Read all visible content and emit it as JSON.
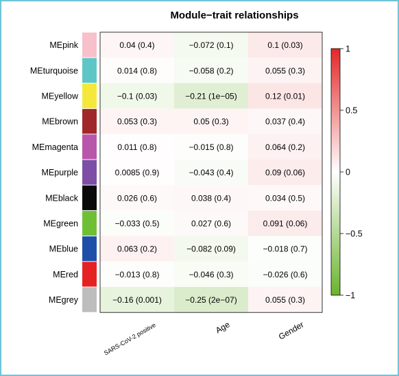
{
  "chart_data": {
    "type": "heatmap",
    "title": "Module−trait relationships",
    "columns": [
      "SARS-CoV-2 positive",
      "Age",
      "Gender"
    ],
    "rows": [
      {
        "module": "MEpink",
        "color": "#f7c0cb",
        "values": [
          0.04,
          -0.072,
          0.1
        ],
        "labels": [
          "0.04 (0.4)",
          "−0.072 (0.1)",
          "0.1 (0.03)"
        ]
      },
      {
        "module": "MEturquoise",
        "color": "#5ec6c6",
        "values": [
          0.014,
          -0.058,
          0.055
        ],
        "labels": [
          "0.014 (0.8)",
          "−0.058 (0.2)",
          "0.055 (0.3)"
        ]
      },
      {
        "module": "MEyellow",
        "color": "#f4e93a",
        "values": [
          -0.1,
          -0.21,
          0.12
        ],
        "labels": [
          "−0.1 (0.03)",
          "−0.21 (1e−05)",
          "0.12 (0.01)"
        ]
      },
      {
        "module": "MEbrown",
        "color": "#a0282a",
        "values": [
          0.053,
          0.05,
          0.037
        ],
        "labels": [
          "0.053 (0.3)",
          "0.05 (0.3)",
          "0.037 (0.4)"
        ]
      },
      {
        "module": "MEmagenta",
        "color": "#b856ab",
        "values": [
          0.011,
          -0.015,
          0.064
        ],
        "labels": [
          "0.011 (0.8)",
          "−0.015 (0.8)",
          "0.064 (0.2)"
        ]
      },
      {
        "module": "MEpurple",
        "color": "#7d4ea6",
        "values": [
          0.0085,
          -0.043,
          0.09
        ],
        "labels": [
          "0.0085 (0.9)",
          "−0.043 (0.4)",
          "0.09 (0.06)"
        ]
      },
      {
        "module": "MEblack",
        "color": "#0a0a0a",
        "values": [
          0.026,
          0.038,
          0.034
        ],
        "labels": [
          "0.026 (0.6)",
          "0.038 (0.4)",
          "0.034 (0.5)"
        ]
      },
      {
        "module": "MEgreen",
        "color": "#6fbf35",
        "values": [
          -0.033,
          0.027,
          0.091
        ],
        "labels": [
          "−0.033 (0.5)",
          "0.027 (0.6)",
          "0.091 (0.06)"
        ]
      },
      {
        "module": "MEblue",
        "color": "#1e4fa8",
        "values": [
          0.063,
          -0.082,
          -0.018
        ],
        "labels": [
          "0.063 (0.2)",
          "−0.082 (0.09)",
          "−0.018 (0.7)"
        ]
      },
      {
        "module": "MEred",
        "color": "#e52222",
        "values": [
          -0.013,
          -0.046,
          -0.026
        ],
        "labels": [
          "−0.013 (0.8)",
          "−0.046 (0.3)",
          "−0.026 (0.6)"
        ]
      },
      {
        "module": "MEgrey",
        "color": "#bdbdbd",
        "values": [
          -0.16,
          -0.25,
          0.055
        ],
        "labels": [
          "−0.16 (0.001)",
          "−0.25 (2e−07)",
          "0.055 (0.3)"
        ]
      }
    ],
    "colorbar": {
      "range": [
        -1,
        1
      ],
      "ticks": [
        1,
        0.5,
        0,
        -0.5,
        -1
      ],
      "tick_labels": [
        "1",
        "0.5",
        "0",
        "−0.5",
        "−1"
      ],
      "low_color": "#6ab42d",
      "mid_color": "#ffffff",
      "high_color": "#e32727"
    }
  }
}
